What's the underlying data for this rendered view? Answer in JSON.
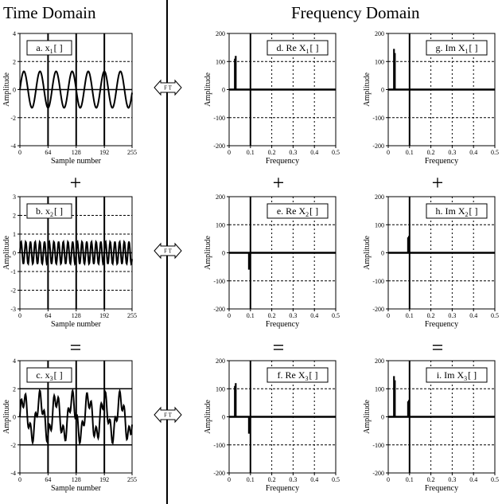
{
  "headers": {
    "time": "Time Domain",
    "frequency": "Frequency Domain"
  },
  "ft_label": "F T",
  "operators": [
    "+",
    "="
  ],
  "time_axes": {
    "xlabel": "Sample number",
    "ylabel": "Amplitude",
    "xlim": [
      0,
      255
    ],
    "xticks": [
      0,
      64,
      128,
      192,
      255
    ],
    "xgrid": [
      64,
      128,
      192
    ],
    "ylim": [
      -4,
      4
    ],
    "yticks": [
      4,
      2,
      0,
      -2,
      -4
    ],
    "yticks_b": [
      3,
      2,
      1,
      0,
      -1,
      -2,
      -3
    ]
  },
  "freq_axes": {
    "xlabel": "Frequency",
    "ylabel": "Amplitude",
    "xlim": [
      0,
      0.5
    ],
    "xticks": [
      0,
      0.1,
      0.2,
      0.3,
      0.4,
      0.5
    ],
    "ylim": [
      -200,
      200
    ],
    "yticks": [
      200,
      100,
      0,
      -100,
      -200
    ]
  },
  "chart_data": [
    {
      "id": "a",
      "type": "line",
      "domain": "time",
      "label": "a.  x",
      "sub": "1",
      "suffix": "[ ]",
      "amp": 1.3,
      "cycles": 7,
      "ylim": [
        -4,
        4
      ],
      "yticks": [
        4,
        2,
        0,
        -2,
        -4
      ],
      "hgrid": [
        -2,
        2
      ],
      "grid_style": "dashed"
    },
    {
      "id": "b",
      "type": "line",
      "domain": "time",
      "label": "b.  x",
      "sub": "2",
      "suffix": "[ ]",
      "amp": 0.6,
      "cycles": 24,
      "ylim": [
        -3,
        3
      ],
      "yticks": [
        3,
        2,
        1,
        0,
        -1,
        -2,
        -3
      ],
      "hgrid": [
        -1,
        1,
        -2,
        2
      ],
      "grid_style": "dashed"
    },
    {
      "id": "c",
      "type": "line",
      "domain": "time",
      "label": "c.  x",
      "sub": "3",
      "suffix": "[ ]",
      "components": [
        {
          "amp": 1.3,
          "cycles": 7
        },
        {
          "amp": 0.6,
          "cycles": 24
        }
      ],
      "ylim": [
        -4,
        4
      ],
      "yticks": [
        4,
        2,
        0,
        -2,
        -4
      ],
      "hgrid": [
        -2,
        2
      ],
      "grid_style": "solid"
    },
    {
      "id": "d",
      "type": "bar",
      "domain": "freq",
      "label": "d.  Re X",
      "sub": "1",
      "suffix": "[ ]",
      "bars": [
        {
          "x": 0.027,
          "y": 110
        },
        {
          "x": 0.031,
          "y": 120
        }
      ],
      "hgrid": [
        100,
        -100
      ],
      "grid_style": "dashed"
    },
    {
      "id": "g",
      "type": "bar",
      "domain": "freq",
      "label": "g.  Im X",
      "sub": "1",
      "suffix": "[ ]",
      "bars": [
        {
          "x": 0.027,
          "y": 145
        },
        {
          "x": 0.031,
          "y": 130
        }
      ],
      "hgrid": [
        100,
        -100
      ],
      "grid_style": "dashed"
    },
    {
      "id": "e",
      "type": "bar",
      "domain": "freq",
      "label": "e.  Re X",
      "sub": "2",
      "suffix": "[ ]",
      "bars": [
        {
          "x": 0.093,
          "y": -60
        },
        {
          "x": 0.097,
          "y": -55
        }
      ],
      "hgrid": [
        100,
        -100
      ],
      "grid_style": "dashed"
    },
    {
      "id": "h",
      "type": "bar",
      "domain": "freq",
      "label": "h.  Im X",
      "sub": "2",
      "suffix": "[ ]",
      "bars": [
        {
          "x": 0.093,
          "y": 55
        },
        {
          "x": 0.097,
          "y": 60
        }
      ],
      "hgrid": [
        100,
        -100
      ],
      "grid_style": "dashed"
    },
    {
      "id": "f",
      "type": "bar",
      "domain": "freq",
      "label": "f.  Re X",
      "sub": "3",
      "suffix": "[ ]",
      "bars": [
        {
          "x": 0.027,
          "y": 110
        },
        {
          "x": 0.031,
          "y": 120
        },
        {
          "x": 0.093,
          "y": -60
        },
        {
          "x": 0.097,
          "y": -55
        }
      ],
      "hgrid": [
        100,
        -100
      ],
      "grid_style": "dashed"
    },
    {
      "id": "i",
      "type": "bar",
      "domain": "freq",
      "label": "i.  Im X",
      "sub": "3",
      "suffix": "[ ]",
      "bars": [
        {
          "x": 0.027,
          "y": 145
        },
        {
          "x": 0.031,
          "y": 130
        },
        {
          "x": 0.093,
          "y": 55
        },
        {
          "x": 0.097,
          "y": 60
        }
      ],
      "hgrid": [
        100,
        -100
      ],
      "grid_style": "dashed"
    }
  ]
}
